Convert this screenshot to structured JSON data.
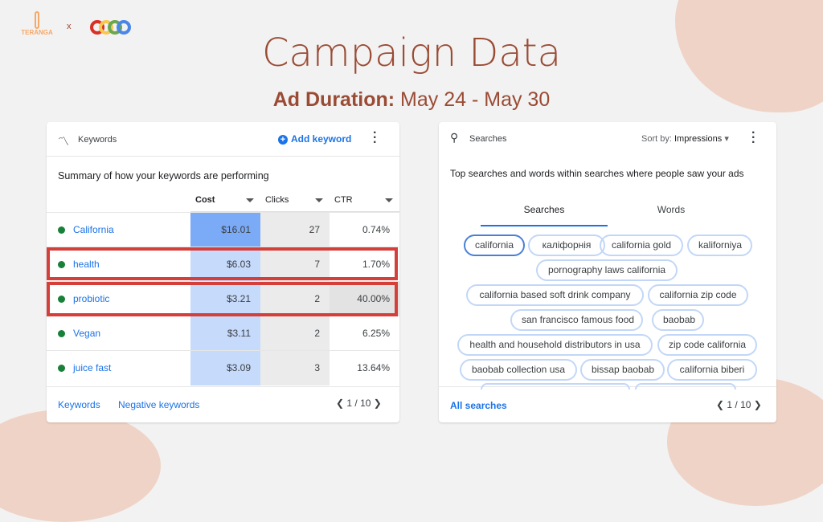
{
  "header": {
    "title": "Campaign Data",
    "subtitle_bold": "Ad Duration:",
    "subtitle_rest": " May 24 - May 30",
    "logo_left": "TERANGA",
    "separator": "x"
  },
  "keywords_card": {
    "title": "Keywords",
    "add_label": "Add keyword",
    "summary": "Summary of how your keywords are performing",
    "columns": [
      "Cost",
      "Clicks",
      "CTR"
    ],
    "rows": [
      {
        "keyword": "California",
        "cost": "$16.01",
        "clicks": "27",
        "ctr": "0.74%",
        "highlighted": false
      },
      {
        "keyword": "health",
        "cost": "$6.03",
        "clicks": "7",
        "ctr": "1.70%",
        "highlighted": true
      },
      {
        "keyword": "probiotic",
        "cost": "$3.21",
        "clicks": "2",
        "ctr": "40.00%",
        "highlighted": true
      },
      {
        "keyword": "Vegan",
        "cost": "$3.11",
        "clicks": "2",
        "ctr": "6.25%",
        "highlighted": false
      },
      {
        "keyword": "juice fast",
        "cost": "$3.09",
        "clicks": "3",
        "ctr": "13.64%",
        "highlighted": false
      }
    ],
    "footer_links": [
      "Keywords",
      "Negative keywords"
    ],
    "pagination": "1 / 10"
  },
  "searches_card": {
    "title": "Searches",
    "sort_prefix": "Sort by:",
    "sort_value": "Impressions",
    "summary": "Top searches and words within searches where people saw your ads",
    "tabs": [
      "Searches",
      "Words"
    ],
    "active_tab": "Searches",
    "chips": [
      "california",
      "каліфорнія",
      "california gold",
      "kaliforniya",
      "pornography laws california",
      "california based soft drink company",
      "california zip code",
      "san francisco famous food",
      "baobab",
      "health and household distributors in usa",
      "zip code california",
      "baobab collection usa",
      "bissap baobab",
      "california biberi"
    ],
    "footer_link": "All searches",
    "pagination": "1 / 10"
  },
  "colors": {
    "title": "#9a4b34",
    "accent": "#1a73e8",
    "highlight": "#d43f3a",
    "status_dot": "#188038"
  }
}
